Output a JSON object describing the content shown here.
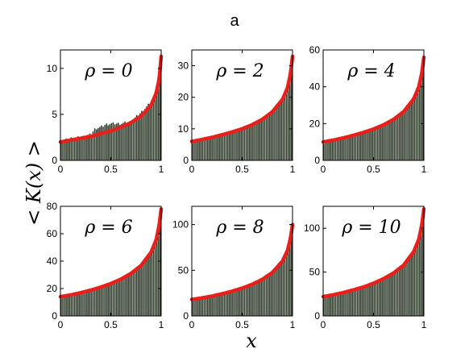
{
  "figure_label": "a",
  "xlabel": "x",
  "ylabel": "< K(x) >",
  "colors": {
    "bars": "#2f3a2c",
    "bar_edge": "#c8d0c4",
    "curve": "#e8201c",
    "axes": "#000000"
  },
  "chart_data": [
    {
      "type": "bar",
      "title": "ρ = 0",
      "rho": 0,
      "xlim": [
        0,
        1
      ],
      "ylim": [
        0,
        12
      ],
      "xticks": [
        "0",
        "0.5",
        "1"
      ],
      "yticks": [
        0,
        5,
        10
      ],
      "ytick_labels": [
        "0",
        "5",
        "10"
      ],
      "curve": {
        "x": [
          0,
          0.1,
          0.2,
          0.3,
          0.4,
          0.5,
          0.6,
          0.7,
          0.8,
          0.9,
          0.95,
          0.98,
          1.0
        ],
        "y": [
          2.0,
          2.2,
          2.4,
          2.6,
          2.9,
          3.2,
          3.6,
          4.1,
          4.8,
          6.0,
          7.3,
          8.8,
          11.3
        ]
      },
      "histogram": {
        "x": [
          0.0,
          0.1,
          0.2,
          0.3,
          0.35,
          0.4,
          0.45,
          0.5,
          0.6,
          0.7,
          0.8,
          0.9,
          0.95,
          1.0
        ],
        "y": [
          2.0,
          2.4,
          2.5,
          2.8,
          3.5,
          3.6,
          3.9,
          4.0,
          4.0,
          4.2,
          5.2,
          6.3,
          7.2,
          11.0
        ]
      }
    },
    {
      "type": "bar",
      "title": "ρ = 2",
      "rho": 2,
      "xlim": [
        0,
        1
      ],
      "ylim": [
        0,
        35
      ],
      "xticks": [
        "0",
        "0.5",
        "1"
      ],
      "yticks": [
        0,
        10,
        20,
        30
      ],
      "ytick_labels": [
        "0",
        "10",
        "20",
        "30"
      ],
      "curve": {
        "x": [
          0,
          0.1,
          0.2,
          0.3,
          0.4,
          0.5,
          0.6,
          0.7,
          0.8,
          0.9,
          0.95,
          0.98,
          1.0
        ],
        "y": [
          6.0,
          6.6,
          7.3,
          8.1,
          9.0,
          10.0,
          11.3,
          13.0,
          15.4,
          19.3,
          23.0,
          27.5,
          33.0
        ]
      },
      "histogram": {
        "x": [
          0.0,
          0.1,
          0.2,
          0.3,
          0.4,
          0.5,
          0.6,
          0.7,
          0.8,
          0.9,
          0.95,
          1.0
        ],
        "y": [
          5.8,
          6.5,
          7.2,
          8.3,
          9.0,
          10.2,
          11.5,
          13.2,
          15.0,
          19.0,
          22.0,
          31.0
        ]
      }
    },
    {
      "type": "bar",
      "title": "ρ = 4",
      "rho": 4,
      "xlim": [
        0,
        1
      ],
      "ylim": [
        0,
        60
      ],
      "xticks": [
        "0",
        "0.5",
        "1"
      ],
      "yticks": [
        0,
        20,
        40,
        60
      ],
      "ytick_labels": [
        "0",
        "20",
        "40",
        "60"
      ],
      "curve": {
        "x": [
          0,
          0.1,
          0.2,
          0.3,
          0.4,
          0.5,
          0.6,
          0.7,
          0.8,
          0.9,
          0.95,
          0.98,
          1.0
        ],
        "y": [
          10.0,
          11.0,
          12.2,
          13.6,
          15.2,
          17.0,
          19.3,
          22.3,
          26.5,
          33.5,
          40.0,
          47.5,
          56.0
        ]
      },
      "histogram": {
        "x": [
          0.0,
          0.1,
          0.2,
          0.3,
          0.4,
          0.5,
          0.6,
          0.7,
          0.8,
          0.9,
          0.95,
          1.0
        ],
        "y": [
          9.5,
          10.8,
          12.0,
          13.5,
          15.0,
          17.0,
          19.0,
          22.0,
          26.0,
          33.0,
          38.0,
          52.0
        ]
      }
    },
    {
      "type": "bar",
      "title": "ρ = 6",
      "rho": 6,
      "xlim": [
        0,
        1
      ],
      "ylim": [
        0,
        80
      ],
      "xticks": [
        "0",
        "0.5",
        "1"
      ],
      "yticks": [
        0,
        20,
        40,
        60,
        80
      ],
      "ytick_labels": [
        "0",
        "20",
        "40",
        "60",
        "80"
      ],
      "curve": {
        "x": [
          0,
          0.1,
          0.2,
          0.3,
          0.4,
          0.5,
          0.6,
          0.7,
          0.8,
          0.9,
          0.95,
          0.98,
          1.0
        ],
        "y": [
          14.0,
          15.3,
          16.9,
          18.8,
          21.0,
          23.6,
          26.8,
          31.0,
          36.8,
          46.5,
          55.5,
          66.0,
          78.0
        ]
      },
      "histogram": {
        "x": [
          0.0,
          0.1,
          0.2,
          0.3,
          0.4,
          0.5,
          0.6,
          0.7,
          0.8,
          0.9,
          0.95,
          1.0
        ],
        "y": [
          13.5,
          15.0,
          16.5,
          18.5,
          20.8,
          23.5,
          26.5,
          30.5,
          36.0,
          45.5,
          54.0,
          74.0
        ]
      }
    },
    {
      "type": "bar",
      "title": "ρ = 8",
      "rho": 8,
      "xlim": [
        0,
        1
      ],
      "ylim": [
        0,
        120
      ],
      "xticks": [
        "0",
        "0.5",
        "1"
      ],
      "yticks": [
        0,
        50,
        100
      ],
      "ytick_labels": [
        "0",
        "50",
        "100"
      ],
      "curve": {
        "x": [
          0,
          0.1,
          0.2,
          0.3,
          0.4,
          0.5,
          0.6,
          0.7,
          0.8,
          0.9,
          0.95,
          0.98,
          1.0
        ],
        "y": [
          18.0,
          19.7,
          21.7,
          24.2,
          27.0,
          30.4,
          34.6,
          40.0,
          47.5,
          60.0,
          71.5,
          85.0,
          100.0
        ]
      },
      "histogram": {
        "x": [
          0.0,
          0.1,
          0.2,
          0.3,
          0.4,
          0.5,
          0.6,
          0.7,
          0.8,
          0.9,
          0.95,
          1.0
        ],
        "y": [
          17.5,
          19.5,
          21.5,
          24.0,
          26.8,
          30.0,
          34.0,
          39.5,
          47.0,
          59.0,
          70.0,
          95.0
        ]
      }
    },
    {
      "type": "bar",
      "title": "ρ = 10",
      "rho": 10,
      "xlim": [
        0,
        1
      ],
      "ylim": [
        0,
        125
      ],
      "xticks": [
        "0",
        "0.5",
        "1"
      ],
      "yticks": [
        0,
        50,
        100
      ],
      "ytick_labels": [
        "0",
        "50",
        "100"
      ],
      "curve": {
        "x": [
          0,
          0.1,
          0.2,
          0.3,
          0.4,
          0.5,
          0.6,
          0.7,
          0.8,
          0.9,
          0.95,
          0.98,
          1.0
        ],
        "y": [
          22.0,
          24.1,
          26.6,
          29.6,
          33.0,
          37.2,
          42.4,
          49.0,
          58.0,
          73.5,
          87.5,
          104.0,
          122.0
        ]
      },
      "histogram": {
        "x": [
          0.0,
          0.1,
          0.2,
          0.3,
          0.4,
          0.5,
          0.6,
          0.7,
          0.8,
          0.9,
          0.95,
          1.0
        ],
        "y": [
          21.5,
          23.8,
          26.3,
          29.4,
          32.8,
          36.8,
          42.0,
          48.5,
          57.0,
          72.0,
          85.0,
          116.0
        ]
      }
    }
  ]
}
